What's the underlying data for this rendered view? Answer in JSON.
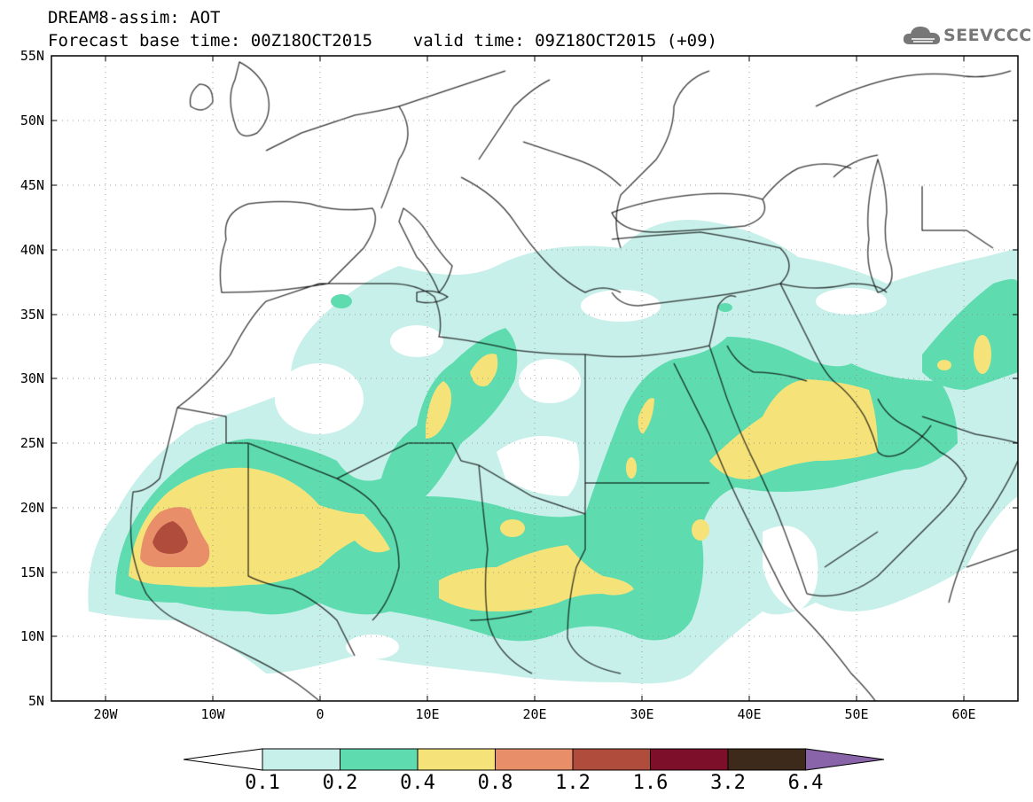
{
  "header": {
    "line1": "DREAM8-assim: AOT",
    "line2": "Forecast base time: 00Z18OCT2015    valid time: 09Z18OCT2015 (+09)"
  },
  "logo": {
    "text": "SEEVCCC",
    "icon": "cloud-icon"
  },
  "map": {
    "variable": "AOT",
    "extent": {
      "lon_min": -25,
      "lon_max": 65,
      "lat_min": 5,
      "lat_max": 55
    },
    "lat_labels": [
      "55N",
      "50N",
      "45N",
      "40N",
      "35N",
      "30N",
      "25N",
      "20N",
      "15N",
      "10N",
      "5N"
    ],
    "lon_labels": [
      "20W",
      "10W",
      "0",
      "10E",
      "20E",
      "30E",
      "40E",
      "50E",
      "60E"
    ],
    "gridlines": "dotted"
  },
  "colorbar": {
    "levels": [
      "0.1",
      "0.2",
      "0.4",
      "0.8",
      "1.2",
      "1.6",
      "3.2",
      "6.4"
    ],
    "colors": [
      "#ffffff",
      "#c8f0ea",
      "#5edcb0",
      "#f5e37a",
      "#e88f6a",
      "#b04c3c",
      "#7d0f2b",
      "#3e2a1a",
      "#8a64a8"
    ]
  }
}
